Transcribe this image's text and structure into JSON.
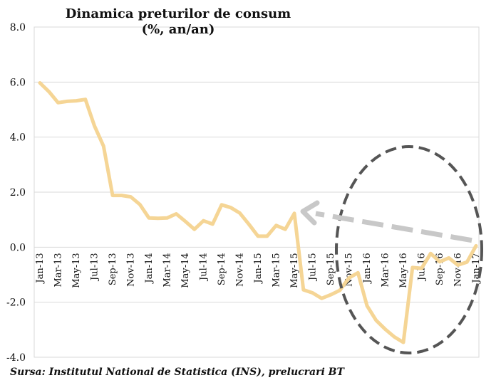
{
  "chart_data": {
    "type": "line",
    "title": "Dinamica preturilor de consum",
    "subtitle": "(%, an/an)",
    "xlabel": "",
    "ylabel": "",
    "ylim": [
      -4.0,
      8.0
    ],
    "yticks": [
      "8.0",
      "6.0",
      "4.0",
      "2.0",
      "0.0",
      "-2.0",
      "-4.0"
    ],
    "ytick_values": [
      8,
      6,
      4,
      2,
      0,
      -2,
      -4
    ],
    "grid": "horizontal",
    "source": "Sursa: Institutul National de Statistica (INS), prelucrari BT",
    "x_tick_labels": [
      "Jan-13",
      "Mar-13",
      "May-13",
      "Jul-13",
      "Sep-13",
      "Nov-13",
      "Jan-14",
      "Mar-14",
      "May-14",
      "Jul-14",
      "Sep-14",
      "Nov-14",
      "Jan-15",
      "Mar-15",
      "May-15",
      "Jul-15",
      "Sep-15",
      "Nov-15",
      "Jan-16",
      "Mar-16",
      "May-16",
      "Jul-16",
      "Sep-16",
      "Nov-16",
      "Jan-17"
    ],
    "series": [
      {
        "color": "#f5d595",
        "x": [
          "Jan-13",
          "Feb-13",
          "Mar-13",
          "Apr-13",
          "May-13",
          "Jun-13",
          "Jul-13",
          "Aug-13",
          "Sep-13",
          "Oct-13",
          "Nov-13",
          "Dec-13",
          "Jan-14",
          "Feb-14",
          "Mar-14",
          "Apr-14",
          "May-14",
          "Jun-14",
          "Jul-14",
          "Aug-14",
          "Sep-14",
          "Oct-14",
          "Nov-14",
          "Dec-14",
          "Jan-15",
          "Feb-15",
          "Mar-15",
          "Apr-15",
          "May-15",
          "Jun-15",
          "Jul-15",
          "Aug-15",
          "Sep-15",
          "Oct-15",
          "Nov-15",
          "Dec-15",
          "Jan-16",
          "Feb-16",
          "Mar-16",
          "Apr-16",
          "May-16",
          "Jun-16",
          "Jul-16",
          "Aug-16",
          "Sep-16",
          "Oct-16",
          "Nov-16",
          "Dec-16",
          "Jan-17"
        ],
        "values": [
          5.97,
          5.65,
          5.25,
          5.3,
          5.32,
          5.37,
          4.41,
          3.67,
          1.88,
          1.88,
          1.83,
          1.55,
          1.06,
          1.05,
          1.06,
          1.21,
          0.94,
          0.65,
          0.96,
          0.84,
          1.54,
          1.44,
          1.24,
          0.83,
          0.4,
          0.4,
          0.79,
          0.65,
          1.23,
          -1.55,
          -1.66,
          -1.86,
          -1.73,
          -1.57,
          -1.12,
          -0.93,
          -2.13,
          -2.66,
          -2.98,
          -3.26,
          -3.46,
          -0.74,
          -0.77,
          -0.23,
          -0.53,
          -0.39,
          -0.65,
          -0.54,
          0.05
        ]
      }
    ],
    "annotations": [
      {
        "type": "dashed-ellipse",
        "color": "#555555"
      },
      {
        "type": "dashed-arrow",
        "color": "#c8c8c8",
        "from": "Jan-17",
        "to": "May-15"
      }
    ]
  }
}
